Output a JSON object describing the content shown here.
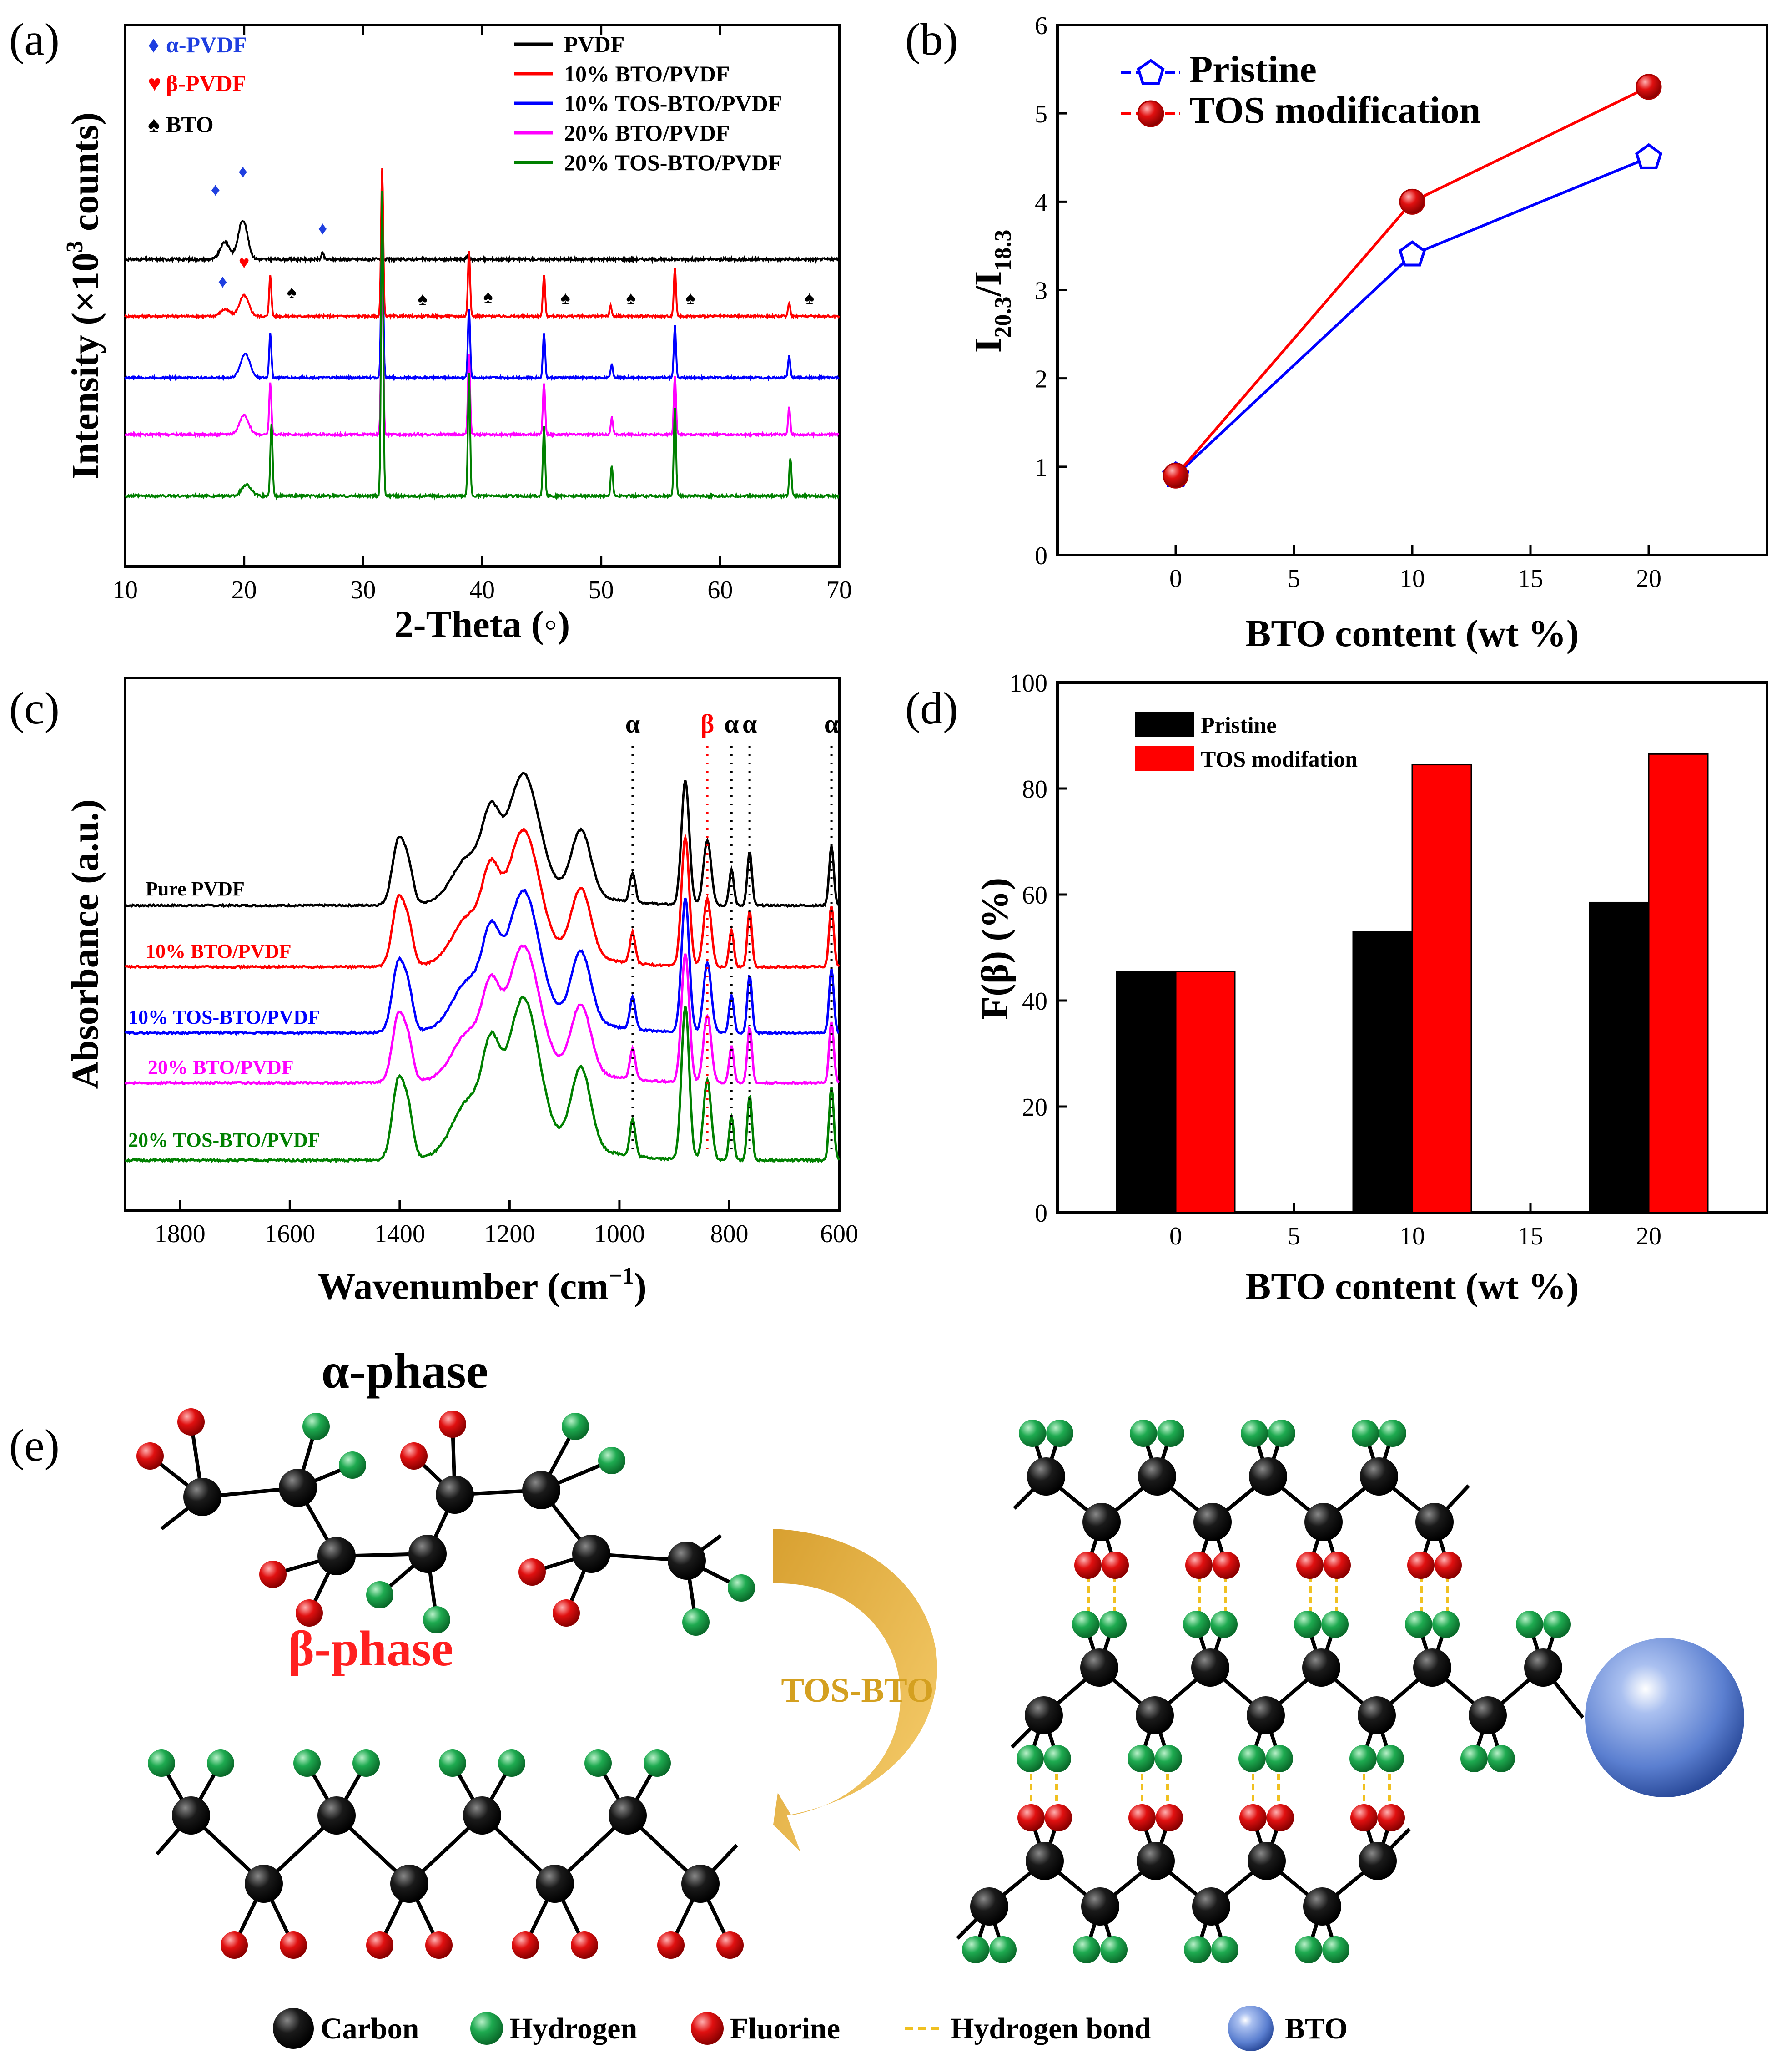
{
  "colors": {
    "black": "#000000",
    "red": "#ff0000",
    "blue": "#0000ff",
    "magenta": "#ff00ff",
    "green": "#008000",
    "diamond": "#1f3fe0",
    "carbon": "#101010",
    "hydrogen": "#1eaa50",
    "fluorine": "#e01010",
    "hbond": "#f0c020",
    "bto": "#5b7fd0",
    "arrow": "#e8b030"
  },
  "panel_labels": {
    "a": "(a)",
    "b": "(b)",
    "c": "(c)",
    "d": "(d)",
    "e": "(e)"
  },
  "chart_data": [
    {
      "id": "a",
      "type": "line",
      "title": "",
      "xlabel": "2-Theta (◦)",
      "ylabel_main": "Intensity (×10",
      "ylabel_sup": "3",
      "ylabel_tail": " counts)",
      "xlim": [
        10,
        70
      ],
      "xticks": [
        "10",
        "20",
        "30",
        "40",
        "50",
        "60",
        "70"
      ],
      "series": [
        {
          "name": "PVDF",
          "color": "#000000",
          "baseline": 0.0,
          "peaks": [
            [
              18.4,
              0.8
            ],
            [
              19.9,
              1.8
            ],
            [
              26.6,
              0.3
            ],
            [
              38.8,
              0.2
            ]
          ]
        },
        {
          "name": "10% BTO/PVDF",
          "color": "#ff0000",
          "baseline": 0.0,
          "peaks": [
            [
              18.4,
              0.4
            ],
            [
              20.0,
              1.2
            ],
            [
              22.2,
              2.4
            ],
            [
              31.6,
              8.5
            ],
            [
              38.9,
              3.8
            ],
            [
              45.2,
              2.4
            ],
            [
              50.8,
              0.6
            ],
            [
              56.2,
              2.8
            ],
            [
              65.8,
              0.8
            ]
          ]
        },
        {
          "name": "10% TOS-BTO/PVDF",
          "color": "#0000ff",
          "baseline": 0.0,
          "peaks": [
            [
              20.1,
              1.4
            ],
            [
              22.2,
              2.6
            ],
            [
              31.6,
              9.0
            ],
            [
              38.9,
              4.0
            ],
            [
              45.2,
              2.6
            ],
            [
              50.9,
              0.8
            ],
            [
              56.2,
              3.0
            ],
            [
              65.8,
              1.3
            ]
          ]
        },
        {
          "name": "20% BTO/PVDF",
          "color": "#ff00ff",
          "baseline": 0.0,
          "peaks": [
            [
              20.0,
              1.1
            ],
            [
              22.2,
              3.0
            ],
            [
              31.6,
              10.0
            ],
            [
              38.9,
              4.6
            ],
            [
              45.2,
              3.0
            ],
            [
              50.9,
              1.0
            ],
            [
              56.2,
              3.4
            ],
            [
              65.8,
              1.6
            ]
          ]
        },
        {
          "name": "20% TOS-BTO/PVDF",
          "color": "#008000",
          "baseline": 0.0,
          "peaks": [
            [
              20.2,
              0.6
            ],
            [
              22.3,
              3.8
            ],
            [
              31.6,
              16.0
            ],
            [
              38.9,
              6.4
            ],
            [
              45.2,
              3.6
            ],
            [
              50.9,
              1.6
            ],
            [
              56.2,
              4.6
            ],
            [
              65.9,
              2.0
            ]
          ]
        }
      ],
      "marker_legend": [
        {
          "symbol": "♦",
          "label": "α-PVDF",
          "color": "#1f3fe0"
        },
        {
          "symbol": "♥",
          "label": "β-PVDF",
          "color": "#ff0000"
        },
        {
          "symbol": "♠",
          "label": "BTO",
          "color": "#000000"
        }
      ],
      "marker_symbols": {
        "diamond": "♦",
        "heart": "♥",
        "spade": "♠"
      }
    },
    {
      "id": "b",
      "type": "line",
      "xlabel": "BTO content (wt %)",
      "ylabel_main": "I",
      "ylabel_sub1": "20.3",
      "ylabel_mid": "/I",
      "ylabel_sub2": "18.3",
      "xlim": [
        -5,
        25
      ],
      "ylim": [
        0,
        6
      ],
      "xticks": [
        "0",
        "5",
        "10",
        "15",
        "20"
      ],
      "yticks": [
        "0",
        "1",
        "2",
        "3",
        "4",
        "5",
        "6"
      ],
      "x": [
        0,
        10,
        20
      ],
      "series": [
        {
          "name": "Pristine",
          "color": "#0000ff",
          "values": [
            0.9,
            3.4,
            4.5
          ]
        },
        {
          "name": "TOS modification",
          "color": "#ff0000",
          "values": [
            0.9,
            4.0,
            5.3
          ]
        }
      ]
    },
    {
      "id": "c",
      "type": "line",
      "xlabel_main": "Wavenumber (cm",
      "xlabel_sup": "−1",
      "xlabel_tail": ")",
      "ylabel": "Absorbance (a.u.)",
      "xlim": [
        1900,
        600
      ],
      "xticks": [
        "1800",
        "1600",
        "1400",
        "1200",
        "1000",
        "800",
        "600"
      ],
      "series": [
        {
          "name": "Pure PVDF",
          "color": "#000000"
        },
        {
          "name": "10% BTO/PVDF",
          "color": "#ff0000"
        },
        {
          "name": "10% TOS-BTO/PVDF",
          "color": "#0000ff"
        },
        {
          "name": "20% BTO/PVDF",
          "color": "#ff00ff"
        },
        {
          "name": "20% TOS-BTO/PVDF",
          "color": "#008000"
        }
      ],
      "markers": [
        {
          "label": "α",
          "x": 976,
          "color": "#000000"
        },
        {
          "label": "β",
          "x": 840,
          "color": "#ff0000"
        },
        {
          "label": "α",
          "x": 796,
          "color": "#000000"
        },
        {
          "label": "α",
          "x": 763,
          "color": "#000000"
        },
        {
          "label": "α",
          "x": 614,
          "color": "#000000"
        }
      ]
    },
    {
      "id": "d",
      "type": "bar",
      "xlabel": "BTO content (wt %)",
      "ylabel": "F(β) (%)",
      "xlim": [
        -5,
        25
      ],
      "ylim": [
        0,
        100
      ],
      "xticks": [
        "0",
        "5",
        "10",
        "15",
        "20"
      ],
      "yticks": [
        "0",
        "20",
        "40",
        "60",
        "80",
        "100"
      ],
      "categories": [
        0,
        10,
        20
      ],
      "series": [
        {
          "name": "Pristine",
          "color": "#000000",
          "values": [
            45.5,
            53,
            58.5
          ]
        },
        {
          "name": "TOS modifation",
          "color": "#ff0000",
          "values": [
            45.5,
            84.5,
            86.5
          ]
        }
      ]
    }
  ],
  "panel_e": {
    "alpha_label": "α-phase",
    "beta_label": "β-phase",
    "arrow_label": "TOS-BTO",
    "key": [
      {
        "name": "Carbon",
        "color": "#101010"
      },
      {
        "name": "Hydrogen",
        "color": "#1eaa50"
      },
      {
        "name": "Fluorine",
        "color": "#e01010"
      },
      {
        "name": "Hydrogen bond",
        "color": "#f0c020"
      },
      {
        "name": "BTO",
        "color": "#5b7fd0"
      }
    ]
  }
}
